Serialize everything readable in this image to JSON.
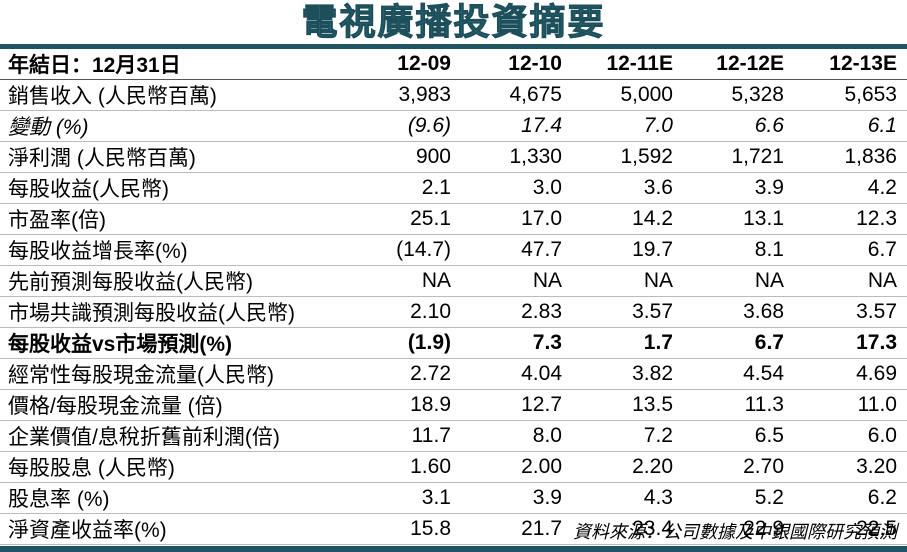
{
  "title": "電視廣播投資摘要",
  "header": {
    "label": "年結日：12月31日",
    "years": [
      "12-09",
      "12-10",
      "12-11E",
      "12-12E",
      "12-13E"
    ]
  },
  "rows": [
    {
      "label": "銷售收入 (人民幣百萬)",
      "values": [
        "3,983",
        "4,675",
        "5,000",
        "5,328",
        "5,653"
      ],
      "style": ""
    },
    {
      "label": "變動 (%)",
      "values": [
        "(9.6)",
        "17.4",
        "7.0",
        "6.6",
        "6.1"
      ],
      "style": "italic"
    },
    {
      "label": "淨利潤 (人民幣百萬)",
      "values": [
        "900",
        "1,330",
        "1,592",
        "1,721",
        "1,836"
      ],
      "style": ""
    },
    {
      "label": "每股收益(人民幣)",
      "values": [
        "2.1",
        "3.0",
        "3.6",
        "3.9",
        "4.2"
      ],
      "style": ""
    },
    {
      "label": "市盈率(倍)",
      "values": [
        "25.1",
        "17.0",
        "14.2",
        "13.1",
        "12.3"
      ],
      "style": ""
    },
    {
      "label": "每股收益增長率(%)",
      "values": [
        "(14.7)",
        "47.7",
        "19.7",
        "8.1",
        "6.7"
      ],
      "style": ""
    },
    {
      "label": "先前預測每股收益(人民幣)",
      "values": [
        "NA",
        "NA",
        "NA",
        "NA",
        "NA"
      ],
      "style": ""
    },
    {
      "label": "市場共識預測每股收益(人民幣)",
      "values": [
        "2.10",
        "2.83",
        "3.57",
        "3.68",
        "3.57"
      ],
      "style": ""
    },
    {
      "label": "每股收益vs市場預測(%)",
      "values": [
        "(1.9)",
        "7.3",
        "1.7",
        "6.7",
        "17.3"
      ],
      "style": "bold"
    },
    {
      "label": "經常性每股現金流量(人民幣)",
      "values": [
        "2.72",
        "4.04",
        "3.82",
        "4.54",
        "4.69"
      ],
      "style": ""
    },
    {
      "label": "價格/每股現金流量 (倍)",
      "values": [
        "18.9",
        "12.7",
        "13.5",
        "11.3",
        "11.0"
      ],
      "style": ""
    },
    {
      "label": "企業價值/息稅折舊前利潤(倍)",
      "values": [
        "11.7",
        "8.0",
        "7.2",
        "6.5",
        "6.0"
      ],
      "style": ""
    },
    {
      "label": "每股股息 (人民幣)",
      "values": [
        "1.60",
        "2.00",
        "2.20",
        "2.70",
        "3.20"
      ],
      "style": ""
    },
    {
      "label": "股息率 (%)",
      "values": [
        "3.1",
        "3.9",
        "4.3",
        "5.2",
        "6.2"
      ],
      "style": ""
    },
    {
      "label": "淨資產收益率(%)",
      "values": [
        "15.8",
        "21.7",
        "23.4",
        "22.9",
        "22.5"
      ],
      "style": ""
    }
  ],
  "source": "資料來源：公司數據及中銀國際研究預測",
  "colors": {
    "title": "#2f6f7f",
    "rule": "#1f5563"
  }
}
